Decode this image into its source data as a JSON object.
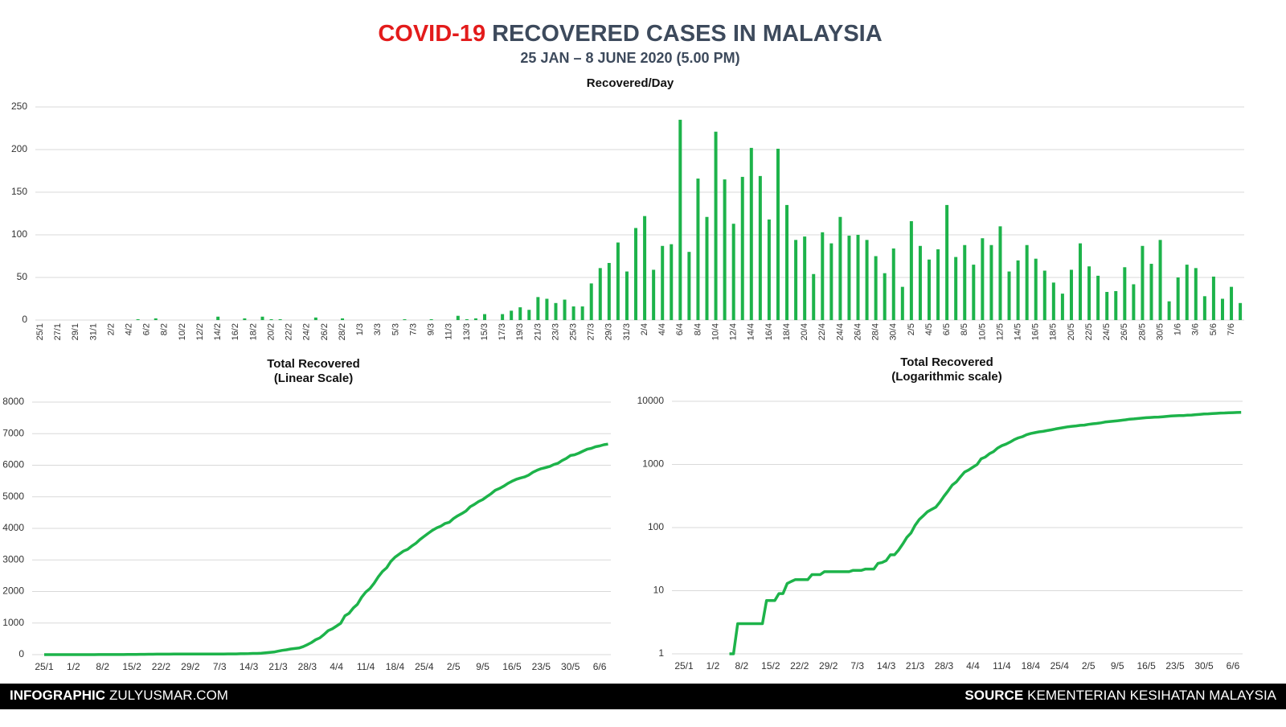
{
  "header": {
    "title_highlight": "COVID-19",
    "title": "RECOVERED CASES IN MALAYSIA",
    "subtitle": "25 JAN – 8 JUNE 2020 (5.00 PM)"
  },
  "chart_data": [
    {
      "type": "bar",
      "title": "Recovered/Day",
      "color": "#1db34a",
      "grid": true,
      "ylim": [
        0,
        250
      ],
      "yticks": [
        0,
        50,
        100,
        150,
        200,
        250
      ],
      "categories": [
        "25/1",
        null,
        "27/1",
        null,
        "29/1",
        null,
        "31/1",
        null,
        "2/2",
        null,
        "4/2",
        null,
        "6/2",
        null,
        "8/2",
        null,
        "10/2",
        null,
        "12/2",
        null,
        "14/2",
        null,
        "16/2",
        null,
        "18/2",
        null,
        "20/2",
        null,
        "22/2",
        null,
        "24/2",
        null,
        "26/2",
        null,
        "28/2",
        null,
        "1/3",
        null,
        "3/3",
        null,
        "5/3",
        null,
        "7/3",
        null,
        "9/3",
        null,
        "11/3",
        null,
        "13/3",
        null,
        "15/3",
        null,
        "17/3",
        null,
        "19/3",
        null,
        "21/3",
        null,
        "23/3",
        null,
        "25/3",
        null,
        "27/3",
        null,
        "29/3",
        null,
        "31/3",
        null,
        "2/4",
        null,
        "4/4",
        null,
        "6/4",
        null,
        "8/4",
        null,
        "10/4",
        null,
        "12/4",
        null,
        "14/4",
        null,
        "16/4",
        null,
        "18/4",
        null,
        "20/4",
        null,
        "22/4",
        null,
        "24/4",
        null,
        "26/4",
        null,
        "28/4",
        null,
        "30/4",
        null,
        "2/5",
        null,
        "4/5",
        null,
        "6/5",
        null,
        "8/5",
        null,
        "10/5",
        null,
        "12/5",
        null,
        "14/5",
        null,
        "16/5",
        null,
        "18/5",
        null,
        "20/5",
        null,
        "22/5",
        null,
        "24/5",
        null,
        "26/5",
        null,
        "28/5",
        null,
        "30/5",
        null,
        "1/6",
        null,
        "3/6",
        null,
        "5/6",
        null,
        "7/6",
        null
      ],
      "values": [
        0,
        0,
        0,
        0,
        0,
        0,
        0,
        0,
        0,
        0,
        0,
        1,
        0,
        2,
        0,
        0,
        0,
        0,
        0,
        0,
        4,
        0,
        0,
        2,
        0,
        4,
        1,
        1,
        0,
        0,
        0,
        3,
        0,
        0,
        2,
        0,
        0,
        0,
        0,
        0,
        0,
        1,
        0,
        0,
        1,
        0,
        0,
        5,
        1,
        2,
        7,
        0,
        7,
        11,
        15,
        12,
        27,
        25,
        20,
        24,
        16,
        16,
        43,
        61,
        67,
        91,
        57,
        108,
        122,
        59,
        87,
        89,
        235,
        80,
        166,
        121,
        221,
        165,
        113,
        168,
        202,
        169,
        118,
        201,
        135,
        94,
        98,
        54,
        103,
        90,
        121,
        99,
        100,
        94,
        75,
        55,
        84,
        39,
        116,
        87,
        71,
        83,
        135,
        74,
        88,
        65,
        96,
        88,
        110,
        57,
        70,
        88,
        72,
        58,
        44,
        31,
        59,
        90,
        63,
        52,
        33,
        34,
        62,
        42,
        87,
        66,
        94,
        22,
        50,
        65,
        61,
        28,
        51,
        25,
        39,
        20
      ]
    },
    {
      "type": "line",
      "title": "Total Recovered",
      "subtitle": "(Linear Scale)",
      "color": "#1db34a",
      "grid": true,
      "ylim": [
        0,
        8000
      ],
      "yticks": [
        0,
        1000,
        2000,
        3000,
        4000,
        5000,
        6000,
        7000,
        8000
      ],
      "categories": [
        "25/1",
        null,
        null,
        null,
        null,
        null,
        null,
        "1/2",
        null,
        null,
        null,
        null,
        null,
        null,
        "8/2",
        null,
        null,
        null,
        null,
        null,
        null,
        "15/2",
        null,
        null,
        null,
        null,
        null,
        null,
        "22/2",
        null,
        null,
        null,
        null,
        null,
        null,
        "29/2",
        null,
        null,
        null,
        null,
        null,
        null,
        "7/3",
        null,
        null,
        null,
        null,
        null,
        null,
        "14/3",
        null,
        null,
        null,
        null,
        null,
        null,
        "21/3",
        null,
        null,
        null,
        null,
        null,
        null,
        "28/3",
        null,
        null,
        null,
        null,
        null,
        null,
        "4/4",
        null,
        null,
        null,
        null,
        null,
        null,
        "11/4",
        null,
        null,
        null,
        null,
        null,
        null,
        "18/4",
        null,
        null,
        null,
        null,
        null,
        null,
        "25/4",
        null,
        null,
        null,
        null,
        null,
        null,
        "2/5",
        null,
        null,
        null,
        null,
        null,
        null,
        "9/5",
        null,
        null,
        null,
        null,
        null,
        null,
        "16/5",
        null,
        null,
        null,
        null,
        null,
        null,
        "23/5",
        null,
        null,
        null,
        null,
        null,
        null,
        "30/5",
        null,
        null,
        null,
        null,
        null,
        null,
        "6/6",
        null,
        null
      ],
      "values": [
        0,
        0,
        0,
        0,
        0,
        0,
        0,
        0,
        0,
        0,
        0,
        1,
        1,
        3,
        3,
        3,
        3,
        3,
        3,
        3,
        7,
        7,
        7,
        9,
        9,
        13,
        14,
        15,
        15,
        15,
        15,
        18,
        18,
        18,
        20,
        20,
        20,
        20,
        20,
        20,
        20,
        21,
        21,
        21,
        22,
        22,
        22,
        27,
        28,
        30,
        37,
        37,
        44,
        55,
        70,
        82,
        109,
        134,
        154,
        178,
        194,
        210,
        253,
        314,
        381,
        472,
        529,
        637,
        759,
        818,
        905,
        994,
        1229,
        1309,
        1475,
        1596,
        1817,
        1982,
        2095,
        2263,
        2465,
        2634,
        2752,
        2953,
        3088,
        3182,
        3280,
        3334,
        3437,
        3527,
        3648,
        3747,
        3847,
        3941,
        4016,
        4071,
        4155,
        4194,
        4310,
        4397,
        4468,
        4551,
        4686,
        4760,
        4848,
        4913,
        5009,
        5097,
        5207,
        5264,
        5334,
        5422,
        5494,
        5552,
        5596,
        5627,
        5686,
        5776,
        5839,
        5891,
        5924,
        5958,
        6020,
        6062,
        6149,
        6215,
        6309,
        6331,
        6381,
        6446,
        6507,
        6535,
        6586,
        6611,
        6650,
        6670
      ]
    },
    {
      "type": "line",
      "title": "Total Recovered",
      "subtitle": "(Logarithmic scale)",
      "color": "#1db34a",
      "grid": true,
      "yscale": "log",
      "ylim": [
        1,
        10000
      ],
      "yticks": [
        1,
        10,
        100,
        1000,
        10000
      ],
      "categories": [
        "25/1",
        null,
        null,
        null,
        null,
        null,
        null,
        "1/2",
        null,
        null,
        null,
        null,
        null,
        null,
        "8/2",
        null,
        null,
        null,
        null,
        null,
        null,
        "15/2",
        null,
        null,
        null,
        null,
        null,
        null,
        "22/2",
        null,
        null,
        null,
        null,
        null,
        null,
        "29/2",
        null,
        null,
        null,
        null,
        null,
        null,
        "7/3",
        null,
        null,
        null,
        null,
        null,
        null,
        "14/3",
        null,
        null,
        null,
        null,
        null,
        null,
        "21/3",
        null,
        null,
        null,
        null,
        null,
        null,
        "28/3",
        null,
        null,
        null,
        null,
        null,
        null,
        "4/4",
        null,
        null,
        null,
        null,
        null,
        null,
        "11/4",
        null,
        null,
        null,
        null,
        null,
        null,
        "18/4",
        null,
        null,
        null,
        null,
        null,
        null,
        "25/4",
        null,
        null,
        null,
        null,
        null,
        null,
        "2/5",
        null,
        null,
        null,
        null,
        null,
        null,
        "9/5",
        null,
        null,
        null,
        null,
        null,
        null,
        "16/5",
        null,
        null,
        null,
        null,
        null,
        null,
        "23/5",
        null,
        null,
        null,
        null,
        null,
        null,
        "30/5",
        null,
        null,
        null,
        null,
        null,
        null,
        "6/6",
        null,
        null
      ],
      "values": [
        null,
        null,
        null,
        null,
        null,
        null,
        null,
        null,
        null,
        null,
        null,
        1,
        1,
        3,
        3,
        3,
        3,
        3,
        3,
        3,
        7,
        7,
        7,
        9,
        9,
        13,
        14,
        15,
        15,
        15,
        15,
        18,
        18,
        18,
        20,
        20,
        20,
        20,
        20,
        20,
        20,
        21,
        21,
        21,
        22,
        22,
        22,
        27,
        28,
        30,
        37,
        37,
        44,
        55,
        70,
        82,
        109,
        134,
        154,
        178,
        194,
        210,
        253,
        314,
        381,
        472,
        529,
        637,
        759,
        818,
        905,
        994,
        1229,
        1309,
        1475,
        1596,
        1817,
        1982,
        2095,
        2263,
        2465,
        2634,
        2752,
        2953,
        3088,
        3182,
        3280,
        3334,
        3437,
        3527,
        3648,
        3747,
        3847,
        3941,
        4016,
        4071,
        4155,
        4194,
        4310,
        4397,
        4468,
        4551,
        4686,
        4760,
        4848,
        4913,
        5009,
        5097,
        5207,
        5264,
        5334,
        5422,
        5494,
        5552,
        5596,
        5627,
        5686,
        5776,
        5839,
        5891,
        5924,
        5958,
        6020,
        6062,
        6149,
        6215,
        6309,
        6331,
        6381,
        6446,
        6507,
        6535,
        6586,
        6611,
        6650,
        6670
      ]
    }
  ],
  "footer": {
    "left_label": "INFOGRAPHIC",
    "left": "ZULYUSMAR.COM",
    "right_label": "SOURCE",
    "right": "KEMENTERIAN KESIHATAN MALAYSIA"
  }
}
